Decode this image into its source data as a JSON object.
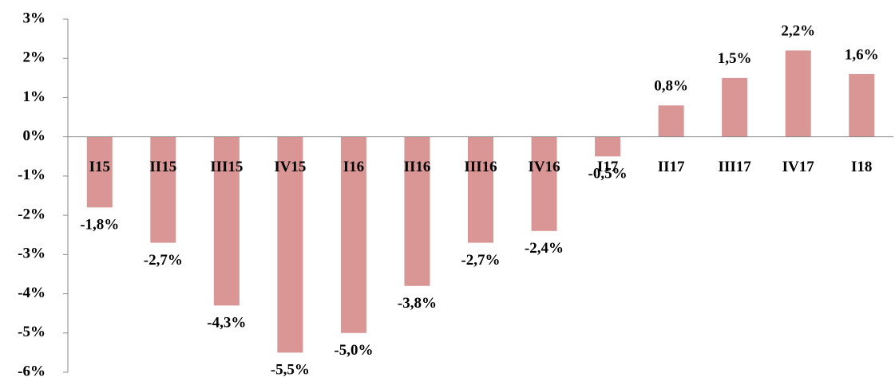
{
  "chart_data": {
    "type": "bar",
    "categories": [
      "I15",
      "II15",
      "III15",
      "IV15",
      "I16",
      "II16",
      "III16",
      "IV16",
      "I17",
      "II17",
      "III17",
      "IV17",
      "I18"
    ],
    "values": [
      -1.8,
      -2.7,
      -4.3,
      -5.5,
      -5.0,
      -3.8,
      -2.7,
      -2.4,
      -0.5,
      0.8,
      1.5,
      2.2,
      1.6
    ],
    "value_labels": [
      "-1,8%",
      "-2,7%",
      "-4,3%",
      "-5,5%",
      "-5,0%",
      "-3,8%",
      "-2,7%",
      "-2,4%",
      "-0,5%",
      "0,8%",
      "1,5%",
      "2,2%",
      "1,6%"
    ],
    "color": "#d99694",
    "ylim": [
      -6,
      3
    ],
    "yticks": [
      {
        "value": -6,
        "label": "-6%"
      },
      {
        "value": -5,
        "label": "-5%"
      },
      {
        "value": -4,
        "label": "-4%"
      },
      {
        "value": -3,
        "label": "-3%"
      },
      {
        "value": -2,
        "label": "-2%"
      },
      {
        "value": -1,
        "label": "-1%"
      },
      {
        "value": 0,
        "label": "0%"
      },
      {
        "value": 1,
        "label": "1%"
      },
      {
        "value": 2,
        "label": "2%"
      },
      {
        "value": 3,
        "label": "3%"
      }
    ],
    "grid": false
  }
}
